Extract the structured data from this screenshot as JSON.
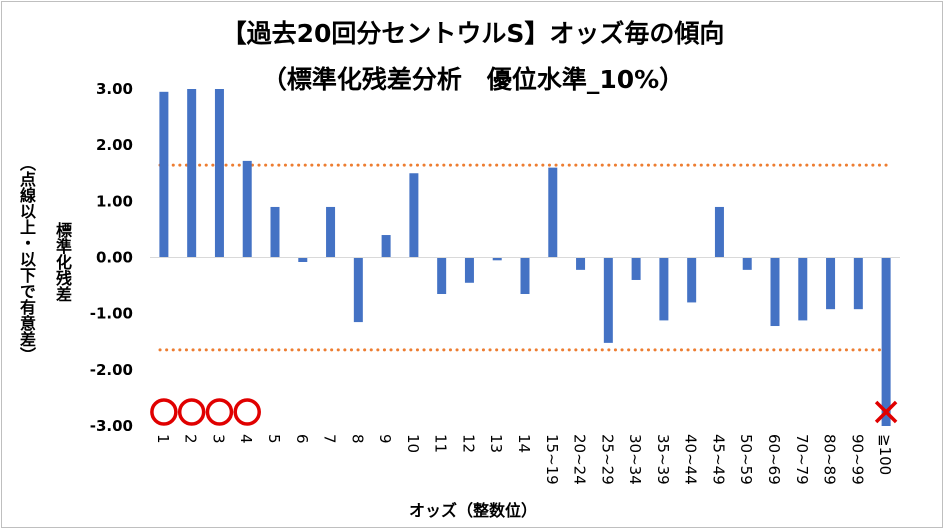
{
  "chart_data": {
    "type": "bar",
    "title_line1": "【過去20回分セントウルS】オッズ毎の傾向",
    "title_line2": "（標準化残差分析　優位水準_10%）",
    "xlabel": "オッズ（整数位）",
    "ylabel_main": "標準化残差",
    "ylabel_sub": "（点線以上・以下で有意差）",
    "ylim": [
      -3,
      3
    ],
    "yticks": [
      "3.00",
      "2.00",
      "1.00",
      "0.00",
      "-1.00",
      "-2.00",
      "-3.00"
    ],
    "threshold": 1.645,
    "categories": [
      "1",
      "2",
      "3",
      "4",
      "5",
      "6",
      "7",
      "8",
      "9",
      "10",
      "11",
      "12",
      "13",
      "14",
      "15~19",
      "20~24",
      "25~29",
      "30~34",
      "35~39",
      "40~44",
      "45~49",
      "50~59",
      "60~69",
      "70~79",
      "80~89",
      "90~99",
      "≧100"
    ],
    "values": [
      2.95,
      3.0,
      3.0,
      1.72,
      0.9,
      -0.08,
      0.9,
      -1.15,
      0.4,
      1.5,
      -0.65,
      -0.45,
      -0.05,
      -0.65,
      1.6,
      -0.22,
      -1.52,
      -0.4,
      -1.12,
      -0.8,
      0.9,
      -0.22,
      -1.22,
      -1.12,
      -0.92,
      -0.92,
      -3.0
    ],
    "markers": [
      {
        "category": "1",
        "symbol": "circle"
      },
      {
        "category": "2",
        "symbol": "circle"
      },
      {
        "category": "3",
        "symbol": "circle"
      },
      {
        "category": "4",
        "symbol": "circle"
      },
      {
        "category": "≧100",
        "symbol": "cross"
      }
    ],
    "colors": {
      "bar": "#4472c4",
      "threshold": "#ed7d31",
      "circle": "#e00000",
      "cross": "#e00000"
    },
    "grid": false
  }
}
